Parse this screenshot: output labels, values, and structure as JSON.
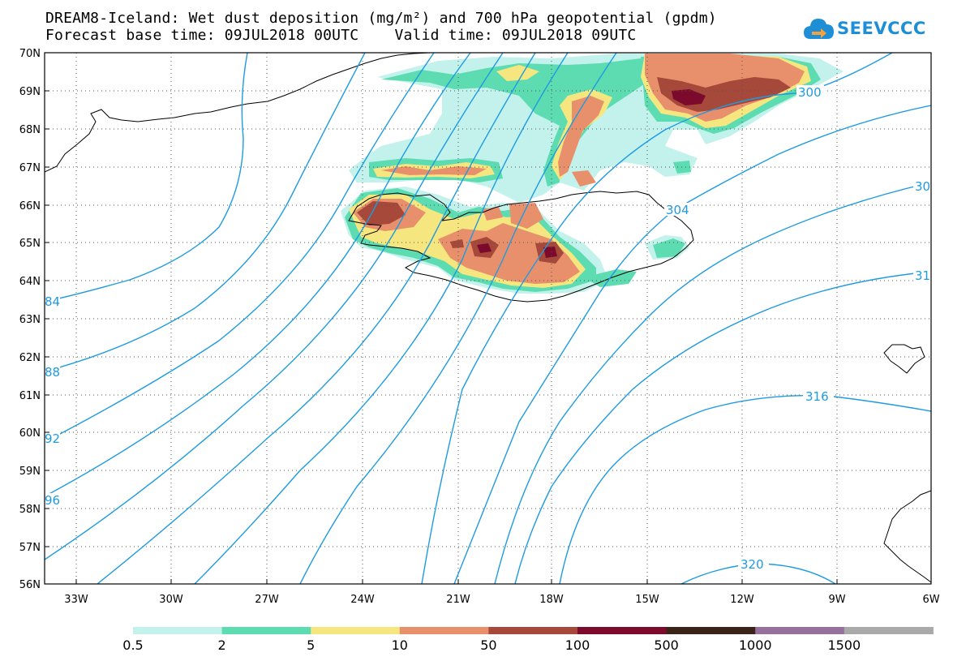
{
  "header": {
    "title": "DREAM8-Iceland: Wet dust deposition (mg/m²) and 700 hPa geopotential (gpdm)",
    "base_time_label": "Forecast base time: 09JUL2018 00UTC",
    "valid_time_label": "Valid time: 09JUL2018 09UTC"
  },
  "logo": {
    "text": "SEEVCCC",
    "icon": "cloud-arrow-icon",
    "color": "#1e8fd6"
  },
  "map": {
    "lon_range": [
      -34.5,
      -6
    ],
    "lat_range": [
      56,
      70
    ],
    "lat_ticks": [
      "56N",
      "57N",
      "58N",
      "59N",
      "60N",
      "61N",
      "62N",
      "63N",
      "64N",
      "65N",
      "66N",
      "67N",
      "68N",
      "69N",
      "70N"
    ],
    "lon_ticks": [
      "33W",
      "30W",
      "27W",
      "24W",
      "21W",
      "18W",
      "15W",
      "12W",
      "9W",
      "6W"
    ],
    "grid": "dotted"
  },
  "contours": {
    "color": "#1e9be0",
    "labels": [
      "84",
      "88",
      "92",
      "96",
      "300",
      "304",
      "31",
      "30",
      "316",
      "320"
    ]
  },
  "legend": {
    "colors": [
      "#c3f1ec",
      "#5ddcb1",
      "#f5e680",
      "#e8906c",
      "#a6483a",
      "#7b0a2c",
      "#3a2418",
      "#95709d",
      "#a9a9a9"
    ],
    "labels": [
      "0.5",
      "2",
      "5",
      "10",
      "50",
      "100",
      "500",
      "1000",
      "1500"
    ]
  }
}
